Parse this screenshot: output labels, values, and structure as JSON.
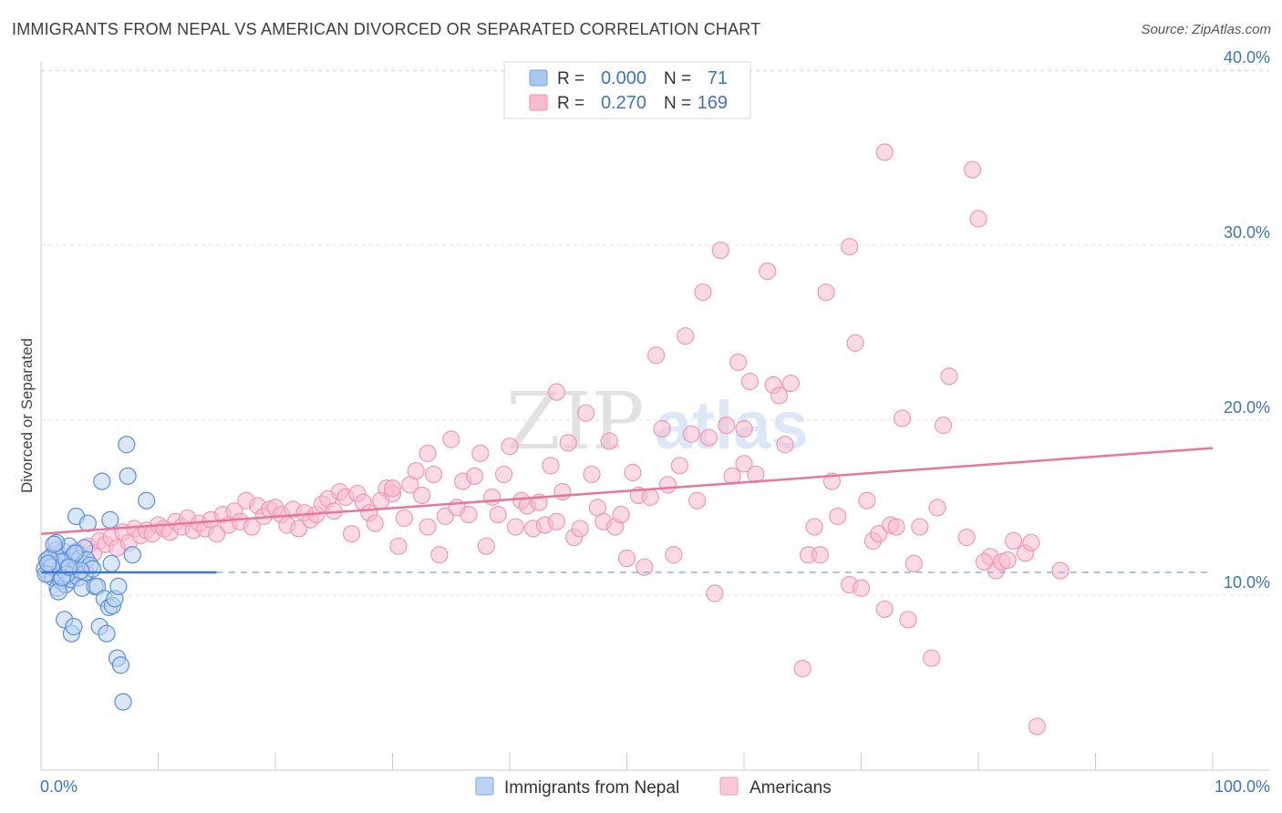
{
  "header": {
    "title": "IMMIGRANTS FROM NEPAL VS AMERICAN DIVORCED OR SEPARATED CORRELATION CHART",
    "source": "Source: ZipAtlas.com"
  },
  "watermark": {
    "zip": "ZIP",
    "atlas": "atlas"
  },
  "legend_top": [
    {
      "r_label": "R =",
      "r_value": "0.000",
      "n_label": "N =",
      "n_value": "71",
      "color": "#a9c8f0",
      "stroke": "#6fa0de"
    },
    {
      "r_label": "R =",
      "r_value": "0.270",
      "n_label": "N =",
      "n_value": "169",
      "color": "#f7bcd0",
      "stroke": "#ee8fb0"
    }
  ],
  "colors": {
    "blue": "#4a86d8",
    "pink": "#e8769c",
    "value_text": "#3b73c4",
    "grid": "#dddddd"
  },
  "chart_data": {
    "type": "scatter",
    "title": "IMMIGRANTS FROM NEPAL VS AMERICAN DIVORCED OR SEPARATED CORRELATION CHART",
    "xlabel": "",
    "ylabel": "Divorced or Separated",
    "xlim": [
      0,
      100
    ],
    "ylim": [
      0,
      42
    ],
    "x_tick_labels": [
      "0.0%",
      "100.0%"
    ],
    "y_ticks": [
      10,
      20,
      30,
      40
    ],
    "y_tick_labels": [
      "10.0%",
      "20.0%",
      "30.0%",
      "40.0%"
    ],
    "grid": true,
    "legend_position": "bottom",
    "series": [
      {
        "name": "Immigrants from Nepal",
        "color": "#a9c8f0",
        "trend": {
          "x": [
            0,
            15
          ],
          "y": [
            11.3,
            11.3
          ],
          "extended_dashed": [
            15,
            100
          ]
        },
        "points": [
          [
            0.3,
            11.5
          ],
          [
            0.5,
            12.0
          ],
          [
            0.6,
            11.2
          ],
          [
            0.8,
            11.8
          ],
          [
            1.0,
            12.3
          ],
          [
            1.0,
            11.0
          ],
          [
            1.2,
            11.7
          ],
          [
            1.3,
            12.6
          ],
          [
            1.4,
            10.4
          ],
          [
            1.5,
            11.3
          ],
          [
            1.6,
            12.2
          ],
          [
            1.7,
            10.8
          ],
          [
            1.8,
            11.9
          ],
          [
            1.9,
            12.5
          ],
          [
            2.0,
            11.4
          ],
          [
            2.1,
            10.6
          ],
          [
            2.2,
            12.0
          ],
          [
            2.3,
            11.6
          ],
          [
            2.4,
            12.8
          ],
          [
            2.5,
            11.1
          ],
          [
            2.6,
            10.9
          ],
          [
            2.7,
            12.2
          ],
          [
            2.8,
            11.5
          ],
          [
            2.9,
            11.9
          ],
          [
            3.0,
            14.5
          ],
          [
            3.1,
            12.4
          ],
          [
            3.2,
            11.0
          ],
          [
            3.3,
            12.1
          ],
          [
            3.5,
            10.4
          ],
          [
            3.6,
            11.8
          ],
          [
            3.7,
            12.7
          ],
          [
            3.8,
            11.3
          ],
          [
            3.9,
            12.0
          ],
          [
            4.0,
            14.1
          ],
          [
            4.2,
            11.7
          ],
          [
            4.4,
            11.5
          ],
          [
            4.6,
            10.5
          ],
          [
            4.8,
            10.5
          ],
          [
            5.0,
            8.2
          ],
          [
            5.2,
            16.5
          ],
          [
            5.4,
            9.8
          ],
          [
            5.6,
            7.8
          ],
          [
            5.8,
            9.3
          ],
          [
            5.9,
            14.3
          ],
          [
            6.0,
            11.8
          ],
          [
            6.1,
            9.4
          ],
          [
            6.3,
            9.8
          ],
          [
            6.5,
            6.4
          ],
          [
            6.6,
            10.5
          ],
          [
            6.8,
            6.0
          ],
          [
            7.0,
            3.9
          ],
          [
            7.3,
            18.6
          ],
          [
            7.4,
            16.8
          ],
          [
            7.8,
            12.3
          ],
          [
            9.0,
            15.4
          ],
          [
            2.0,
            8.6
          ],
          [
            2.6,
            7.8
          ],
          [
            2.8,
            8.2
          ],
          [
            1.3,
            13.0
          ],
          [
            1.7,
            11.9
          ],
          [
            0.7,
            12.1
          ],
          [
            0.9,
            11.6
          ],
          [
            1.1,
            12.9
          ],
          [
            1.5,
            10.2
          ],
          [
            2.2,
            11.2
          ],
          [
            2.9,
            12.4
          ],
          [
            3.4,
            11.4
          ],
          [
            0.4,
            11.2
          ],
          [
            0.6,
            11.8
          ],
          [
            1.8,
            11.0
          ],
          [
            2.4,
            11.6
          ]
        ]
      },
      {
        "name": "Americans",
        "color": "#f7bcd0",
        "trend": {
          "x": [
            0,
            100
          ],
          "y": [
            13.5,
            18.4
          ]
        },
        "points": [
          [
            1.0,
            11.8
          ],
          [
            1.5,
            12.3
          ],
          [
            2.0,
            12.0
          ],
          [
            2.5,
            11.5
          ],
          [
            3.0,
            12.5
          ],
          [
            3.5,
            12.0
          ],
          [
            4.0,
            12.8
          ],
          [
            4.5,
            12.4
          ],
          [
            5.0,
            13.1
          ],
          [
            5.5,
            12.9
          ],
          [
            6.0,
            13.3
          ],
          [
            6.5,
            12.7
          ],
          [
            7.0,
            13.6
          ],
          [
            7.5,
            13.0
          ],
          [
            8.0,
            13.8
          ],
          [
            8.5,
            13.4
          ],
          [
            9.0,
            13.7
          ],
          [
            9.5,
            13.5
          ],
          [
            10.0,
            14.0
          ],
          [
            10.5,
            13.8
          ],
          [
            11.0,
            13.6
          ],
          [
            11.5,
            14.2
          ],
          [
            12.0,
            13.9
          ],
          [
            12.5,
            14.4
          ],
          [
            13.0,
            13.7
          ],
          [
            13.5,
            14.1
          ],
          [
            14.0,
            13.8
          ],
          [
            14.5,
            14.3
          ],
          [
            15.0,
            13.5
          ],
          [
            15.5,
            14.6
          ],
          [
            16.0,
            14.0
          ],
          [
            16.5,
            14.8
          ],
          [
            17.0,
            14.2
          ],
          [
            17.5,
            15.4
          ],
          [
            18.0,
            13.9
          ],
          [
            18.5,
            15.1
          ],
          [
            19.0,
            14.5
          ],
          [
            19.5,
            14.9
          ],
          [
            20.0,
            15.0
          ],
          [
            20.5,
            14.6
          ],
          [
            21.0,
            14.0
          ],
          [
            21.5,
            14.9
          ],
          [
            22.0,
            13.8
          ],
          [
            22.5,
            14.7
          ],
          [
            23.0,
            14.3
          ],
          [
            23.5,
            14.6
          ],
          [
            24.0,
            15.2
          ],
          [
            24.5,
            15.5
          ],
          [
            25.0,
            14.8
          ],
          [
            25.5,
            15.9
          ],
          [
            26.0,
            15.6
          ],
          [
            26.5,
            13.5
          ],
          [
            27.0,
            15.8
          ],
          [
            27.5,
            15.3
          ],
          [
            28.0,
            14.7
          ],
          [
            28.5,
            14.1
          ],
          [
            29.0,
            15.4
          ],
          [
            29.5,
            16.1
          ],
          [
            30.0,
            15.8
          ],
          [
            30.5,
            12.8
          ],
          [
            31.0,
            14.4
          ],
          [
            31.5,
            16.3
          ],
          [
            32.0,
            17.1
          ],
          [
            32.5,
            15.7
          ],
          [
            33.0,
            13.9
          ],
          [
            33.5,
            16.9
          ],
          [
            34.0,
            12.3
          ],
          [
            34.5,
            14.5
          ],
          [
            35.0,
            18.9
          ],
          [
            35.5,
            15.0
          ],
          [
            36.0,
            16.5
          ],
          [
            36.5,
            14.6
          ],
          [
            37.0,
            16.8
          ],
          [
            37.5,
            18.1
          ],
          [
            38.0,
            12.8
          ],
          [
            38.5,
            15.6
          ],
          [
            39.0,
            14.6
          ],
          [
            39.5,
            16.9
          ],
          [
            40.0,
            18.5
          ],
          [
            40.5,
            13.9
          ],
          [
            41.0,
            15.4
          ],
          [
            41.5,
            15.1
          ],
          [
            42.0,
            13.8
          ],
          [
            42.5,
            15.3
          ],
          [
            43.0,
            14.0
          ],
          [
            43.5,
            17.4
          ],
          [
            44.0,
            14.2
          ],
          [
            44.5,
            15.9
          ],
          [
            45.0,
            18.7
          ],
          [
            45.5,
            13.3
          ],
          [
            46.0,
            13.8
          ],
          [
            46.5,
            20.4
          ],
          [
            47.0,
            16.9
          ],
          [
            47.5,
            15.0
          ],
          [
            48.0,
            14.2
          ],
          [
            48.5,
            18.8
          ],
          [
            49.0,
            13.9
          ],
          [
            49.5,
            14.6
          ],
          [
            50.0,
            12.1
          ],
          [
            50.5,
            17.0
          ],
          [
            51.0,
            15.7
          ],
          [
            51.5,
            11.6
          ],
          [
            52.0,
            15.6
          ],
          [
            52.5,
            23.7
          ],
          [
            53.0,
            19.5
          ],
          [
            53.5,
            16.3
          ],
          [
            54.0,
            12.3
          ],
          [
            54.5,
            17.4
          ],
          [
            55.0,
            24.8
          ],
          [
            55.5,
            19.2
          ],
          [
            56.0,
            15.4
          ],
          [
            56.5,
            27.3
          ],
          [
            57.0,
            19.0
          ],
          [
            57.5,
            10.1
          ],
          [
            58.0,
            29.7
          ],
          [
            58.5,
            19.7
          ],
          [
            59.0,
            16.8
          ],
          [
            59.5,
            23.3
          ],
          [
            60.0,
            17.5
          ],
          [
            60.5,
            22.2
          ],
          [
            61.0,
            16.9
          ],
          [
            62.0,
            28.5
          ],
          [
            62.5,
            22.0
          ],
          [
            63.0,
            21.4
          ],
          [
            63.5,
            18.6
          ],
          [
            64.0,
            22.1
          ],
          [
            65.0,
            5.8
          ],
          [
            65.5,
            12.3
          ],
          [
            66.0,
            13.9
          ],
          [
            67.0,
            27.3
          ],
          [
            67.5,
            16.5
          ],
          [
            68.0,
            14.5
          ],
          [
            69.0,
            10.6
          ],
          [
            69.5,
            24.4
          ],
          [
            70.0,
            10.4
          ],
          [
            70.5,
            15.4
          ],
          [
            71.0,
            13.1
          ],
          [
            71.5,
            13.5
          ],
          [
            72.0,
            9.2
          ],
          [
            72.5,
            14.0
          ],
          [
            73.0,
            13.9
          ],
          [
            73.5,
            20.1
          ],
          [
            74.0,
            8.6
          ],
          [
            75.0,
            13.9
          ],
          [
            76.0,
            6.4
          ],
          [
            76.5,
            15.0
          ],
          [
            77.0,
            19.7
          ],
          [
            77.5,
            22.5
          ],
          [
            79.0,
            13.3
          ],
          [
            80.0,
            31.5
          ],
          [
            81.0,
            12.2
          ],
          [
            81.5,
            11.4
          ],
          [
            82.0,
            11.9
          ],
          [
            83.0,
            13.1
          ],
          [
            84.0,
            12.4
          ],
          [
            85.0,
            2.5
          ],
          [
            87.0,
            11.4
          ],
          [
            72.0,
            35.3
          ],
          [
            79.5,
            34.3
          ],
          [
            69.0,
            29.9
          ],
          [
            30.0,
            16.1
          ],
          [
            33.0,
            18.1
          ],
          [
            44.0,
            21.6
          ],
          [
            60.0,
            19.5
          ],
          [
            66.5,
            12.3
          ],
          [
            74.5,
            11.8
          ],
          [
            80.5,
            11.9
          ],
          [
            84.5,
            13.0
          ],
          [
            82.5,
            12.0
          ]
        ]
      }
    ]
  },
  "axis_labels": {
    "x_left": "0.0%",
    "x_right": "100.0%",
    "y_axis": "Divorced or Separated"
  },
  "legend_bottom": [
    {
      "label": "Immigrants from Nepal",
      "color": "#bcd4f4",
      "stroke": "#7aa6de"
    },
    {
      "label": "Americans",
      "color": "#f9c9d8",
      "stroke": "#ee9ab7"
    }
  ]
}
